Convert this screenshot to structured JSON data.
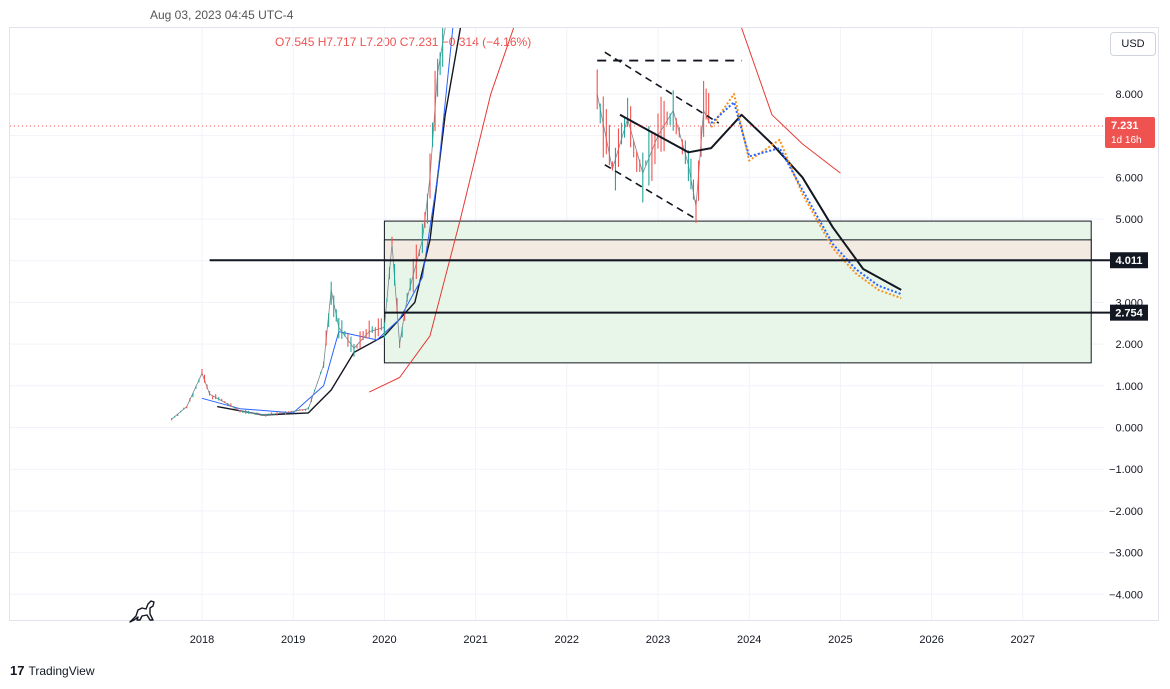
{
  "header": {
    "datetime": "Aug 03, 2023 04:45 UTC-4",
    "ohlc": "O7.545  H7.717  L7.200  C7.231  −0.314 (−4.16%)"
  },
  "currency_button": "USD",
  "branding": {
    "logo_mark": "17",
    "name": "TradingView"
  },
  "icons": {
    "mascot": "dinosaur-icon"
  },
  "colors": {
    "up": "#26a69a",
    "down": "#ef5350",
    "ma_fast": "#2962ff",
    "ma_slow": "#131722",
    "projection_orange": "#f7931a",
    "projection_blue": "#2962ff",
    "ma_200": "#e53935",
    "zone_green": "#e8f5e9",
    "zone_beige": "#f3ebe2",
    "price_line": "#ef5350"
  },
  "chart_data": {
    "type": "line",
    "x_axis": {
      "type": "date",
      "tick_labels": [
        "2018",
        "2019",
        "2020",
        "2021",
        "2022",
        "2023",
        "2024",
        "2025",
        "2026",
        "2027"
      ]
    },
    "y_axis": {
      "tick_labels": [
        "8.000",
        "7.000",
        "6.000",
        "5.000",
        "4.000",
        "3.000",
        "2.000",
        "1.000",
        "0.000",
        "−1.000",
        "−2.000",
        "−3.000",
        "−4.000"
      ],
      "ylim": [
        -4.8,
        9.6
      ]
    },
    "grid": true,
    "current_price": {
      "value": 7.231,
      "label": "7.231",
      "countdown": "1d 16h"
    },
    "horizontal_lines": [
      {
        "value": 4.011,
        "label": "4.011",
        "from": "2018-02"
      },
      {
        "value": 2.754,
        "label": "2.754",
        "from": "2020-01"
      }
    ],
    "dashed_top_line": {
      "value": 8.8,
      "from": "2022-05",
      "to": "2023-12"
    },
    "zones": [
      {
        "name": "green",
        "from": "2020-01",
        "to": "2027-10",
        "low": 1.55,
        "high": 4.95
      },
      {
        "name": "beige",
        "from": "2020-01",
        "to": "2027-10",
        "low": 4.0,
        "high": 4.5
      }
    ],
    "wedge": {
      "upper": [
        [
          "2022-06",
          9.0
        ],
        [
          "2023-09",
          7.3
        ]
      ],
      "lower": [
        [
          "2022-06",
          6.3
        ],
        [
          "2023-06",
          5.0
        ]
      ]
    },
    "series": [
      {
        "name": "price",
        "points": [
          [
            "2017-09",
            0.2
          ],
          [
            "2017-11",
            0.5
          ],
          [
            "2018-01",
            1.3
          ],
          [
            "2018-02",
            0.8
          ],
          [
            "2018-04",
            0.6
          ],
          [
            "2018-06",
            0.4
          ],
          [
            "2018-09",
            0.3
          ],
          [
            "2018-12",
            0.35
          ],
          [
            "2019-03",
            0.45
          ],
          [
            "2019-05",
            1.5
          ],
          [
            "2019-06",
            3.3
          ],
          [
            "2019-07",
            2.4
          ],
          [
            "2019-09",
            1.9
          ],
          [
            "2019-11",
            2.3
          ],
          [
            "2020-01",
            2.4
          ],
          [
            "2020-02",
            4.4
          ],
          [
            "2020-03",
            2.0
          ],
          [
            "2020-04",
            3.1
          ],
          [
            "2020-06",
            4.5
          ],
          [
            "2020-07",
            6.0
          ],
          [
            "2020-08",
            8.5
          ],
          [
            "2020-09",
            9.6
          ],
          [
            "2022-05",
            8.0
          ],
          [
            "2022-07",
            6.2
          ],
          [
            "2022-09",
            7.4
          ],
          [
            "2022-11",
            6.1
          ],
          [
            "2023-01",
            7.0
          ],
          [
            "2023-03",
            7.6
          ],
          [
            "2023-05",
            6.3
          ],
          [
            "2023-06",
            5.3
          ],
          [
            "2023-07",
            7.6
          ],
          [
            "2023-08",
            7.23
          ]
        ]
      },
      {
        "name": "ma_fast",
        "points": [
          [
            "2018-01",
            0.7
          ],
          [
            "2018-06",
            0.45
          ],
          [
            "2019-01",
            0.35
          ],
          [
            "2019-05",
            1.0
          ],
          [
            "2019-07",
            2.3
          ],
          [
            "2019-12",
            2.1
          ],
          [
            "2020-03",
            2.6
          ],
          [
            "2020-06",
            3.6
          ],
          [
            "2020-08",
            6.0
          ],
          [
            "2020-10",
            9.6
          ]
        ]
      },
      {
        "name": "ma_slow",
        "points": [
          [
            "2018-03",
            0.5
          ],
          [
            "2018-09",
            0.3
          ],
          [
            "2019-03",
            0.35
          ],
          [
            "2019-06",
            0.9
          ],
          [
            "2019-09",
            1.8
          ],
          [
            "2020-01",
            2.2
          ],
          [
            "2020-05",
            3.0
          ],
          [
            "2020-07",
            4.5
          ],
          [
            "2020-09",
            7.5
          ],
          [
            "2020-11",
            9.6
          ]
        ]
      },
      {
        "name": "ma_200",
        "points": [
          [
            "2019-11",
            0.85
          ],
          [
            "2020-03",
            1.2
          ],
          [
            "2020-07",
            2.2
          ],
          [
            "2020-11",
            5.0
          ],
          [
            "2021-03",
            8.0
          ],
          [
            "2021-06",
            9.6
          ],
          [
            "2023-12",
            9.6
          ],
          [
            "2024-04",
            7.5
          ],
          [
            "2024-08",
            6.8
          ],
          [
            "2025-01",
            6.1
          ],
          [
            "2025-09",
            5.2
          ]
        ]
      },
      {
        "name": "projection_ma_black",
        "points": [
          [
            "2022-08",
            7.5
          ],
          [
            "2023-01",
            7.0
          ],
          [
            "2023-05",
            6.6
          ],
          [
            "2023-08",
            6.7
          ],
          [
            "2023-12",
            7.5
          ],
          [
            "2024-04",
            6.8
          ],
          [
            "2024-08",
            6.0
          ],
          [
            "2024-12",
            4.8
          ],
          [
            "2025-04",
            3.8
          ],
          [
            "2025-09",
            3.3
          ]
        ]
      },
      {
        "name": "projection_orange",
        "points": [
          [
            "2023-08",
            7.2
          ],
          [
            "2023-11",
            8.0
          ],
          [
            "2024-01",
            6.4
          ],
          [
            "2024-05",
            6.9
          ],
          [
            "2024-08",
            5.6
          ],
          [
            "2024-12",
            4.3
          ],
          [
            "2025-03",
            3.7
          ],
          [
            "2025-06",
            3.3
          ],
          [
            "2025-09",
            3.1
          ]
        ]
      },
      {
        "name": "projection_blue",
        "points": [
          [
            "2023-08",
            7.3
          ],
          [
            "2023-11",
            7.8
          ],
          [
            "2024-01",
            6.5
          ],
          [
            "2024-05",
            6.7
          ],
          [
            "2024-08",
            5.7
          ],
          [
            "2024-12",
            4.4
          ],
          [
            "2025-03",
            3.8
          ],
          [
            "2025-06",
            3.4
          ],
          [
            "2025-09",
            3.2
          ]
        ]
      }
    ]
  }
}
